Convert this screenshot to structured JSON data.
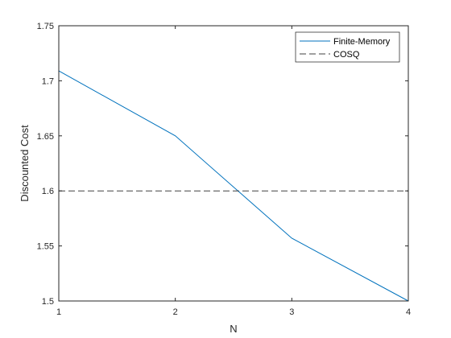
{
  "chart_data": {
    "type": "line",
    "xlabel": "N",
    "ylabel": "Discounted Cost",
    "xlim": [
      1,
      4
    ],
    "ylim": [
      1.5,
      1.75
    ],
    "x_ticks": [
      "1",
      "2",
      "3",
      "4"
    ],
    "y_ticks": [
      "1.5",
      "1.55",
      "1.6",
      "1.65",
      "1.7",
      "1.75"
    ],
    "legend_position": "top-right",
    "grid": false,
    "series": [
      {
        "name": "Finite-Memory",
        "style": "solid",
        "color": "#0072BD",
        "x": [
          1,
          2,
          3,
          4
        ],
        "y": [
          1.709,
          1.65,
          1.557,
          1.5
        ]
      },
      {
        "name": "COSQ",
        "style": "dashed",
        "color": "#404040",
        "x": [
          1,
          4
        ],
        "y": [
          1.6,
          1.6
        ]
      }
    ]
  }
}
